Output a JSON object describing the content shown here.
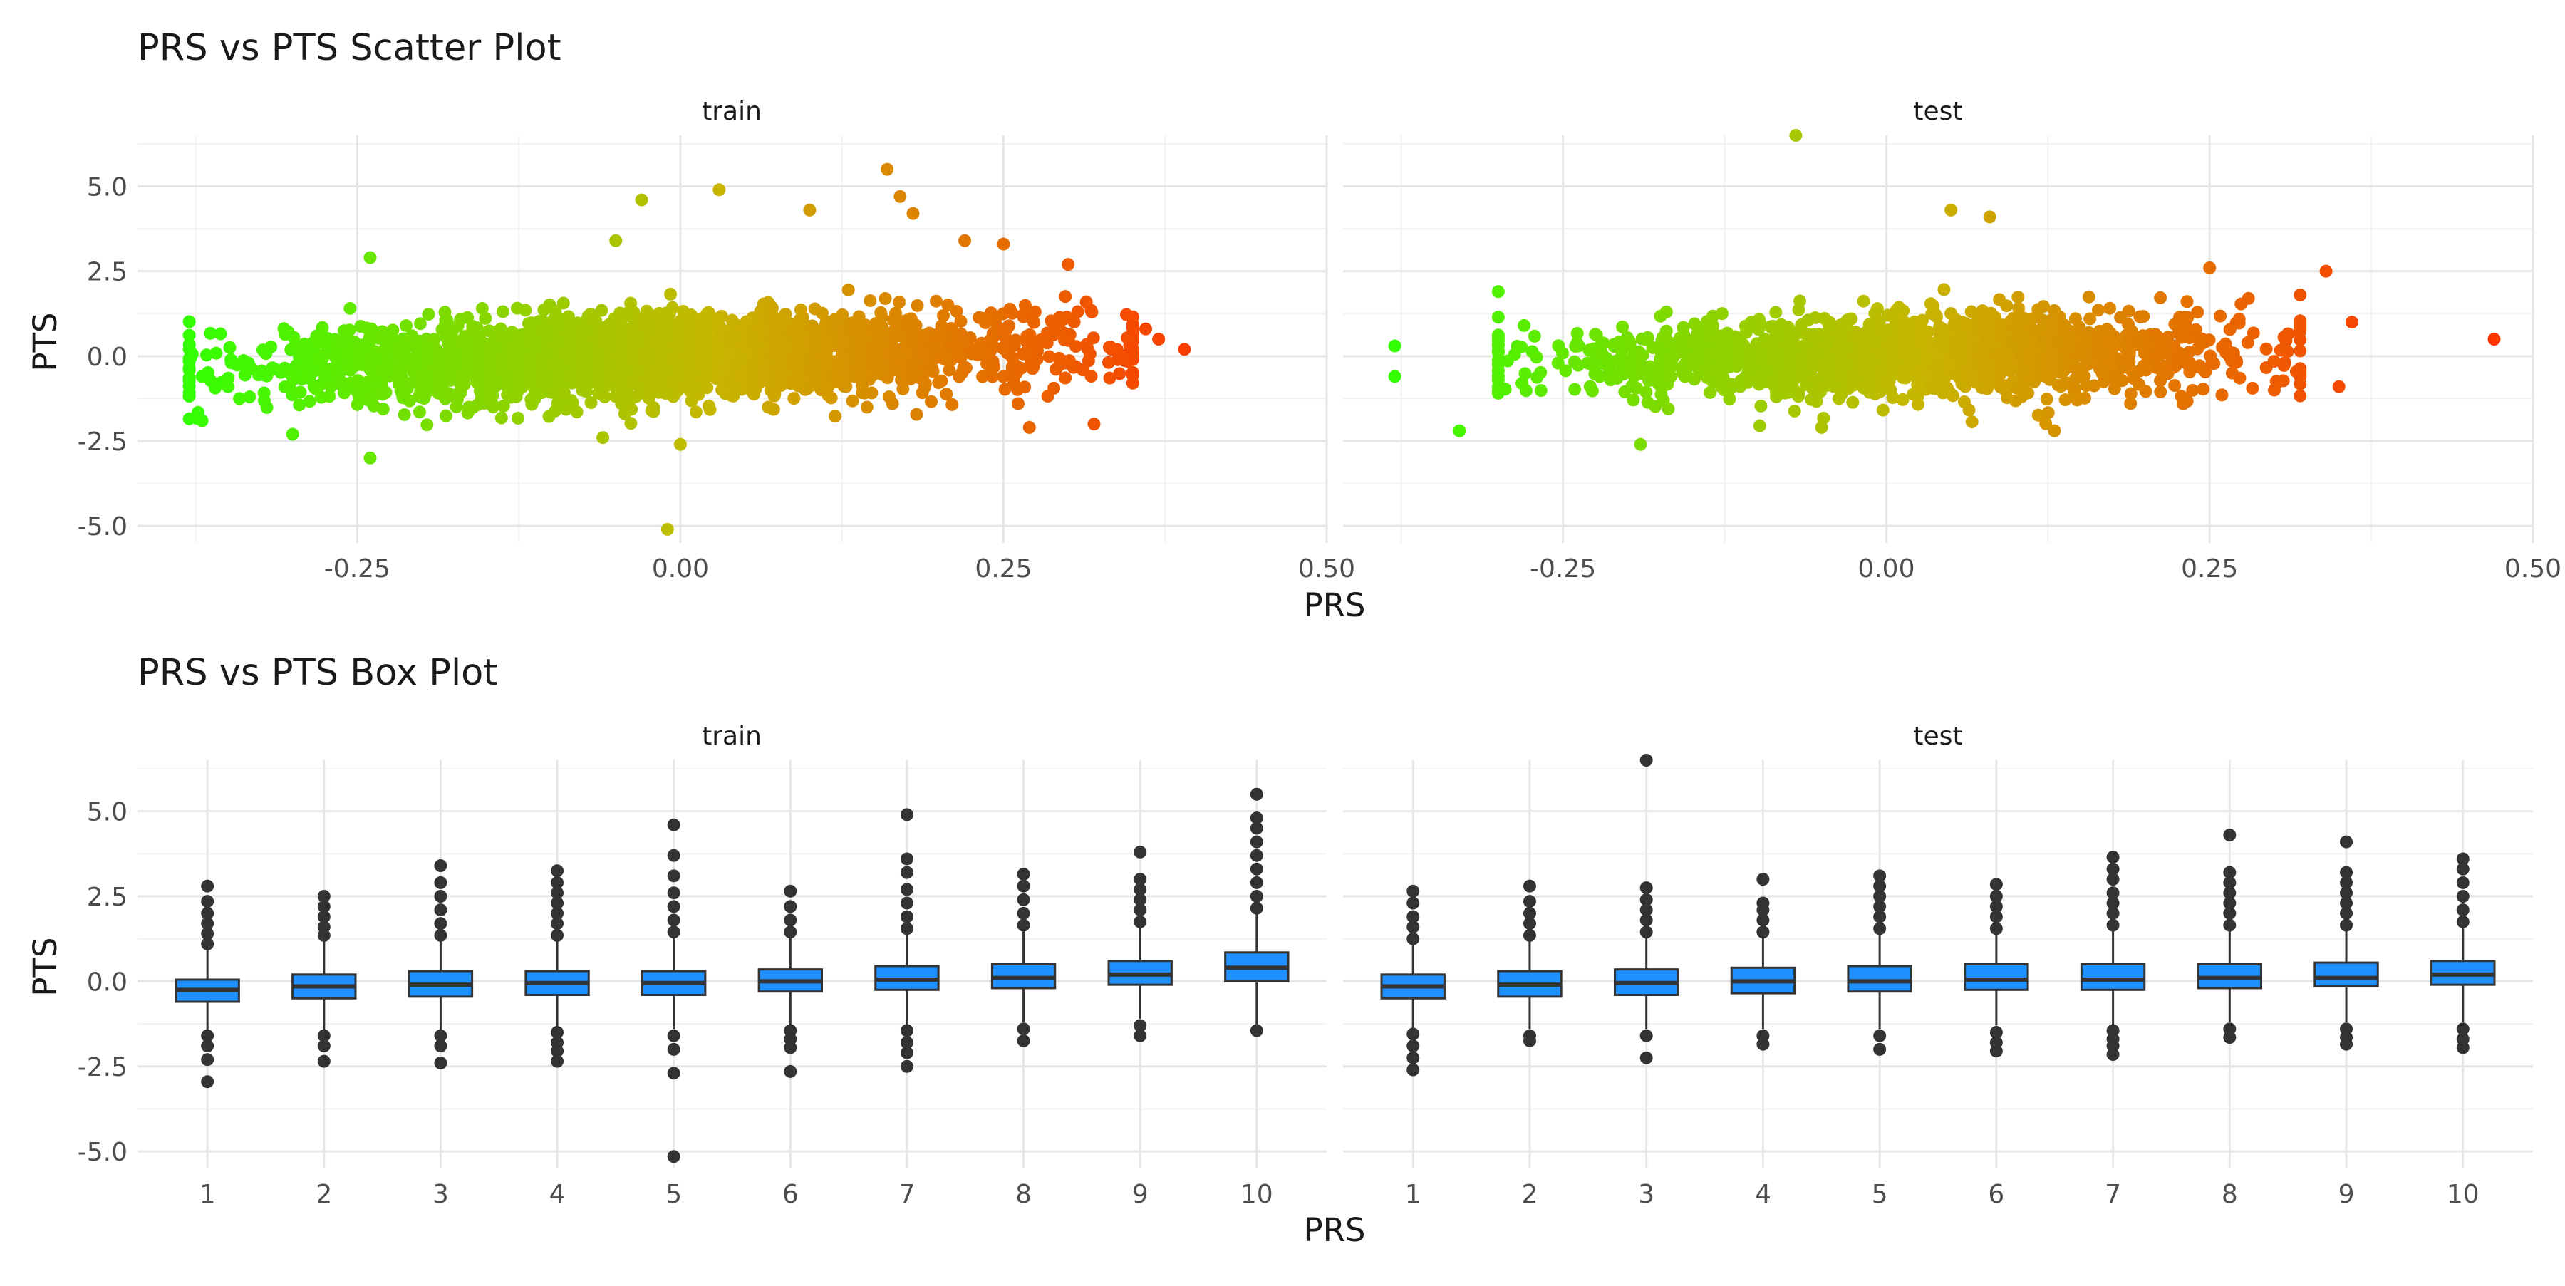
{
  "chart_data": [
    {
      "type": "scatter",
      "title": "PRS vs PTS Scatter Plot",
      "xlabel": "PRS",
      "ylabel": "PTS",
      "facets": [
        "train",
        "test"
      ],
      "xlim": [
        -0.42,
        0.5
      ],
      "ylim": [
        -5.5,
        6.5
      ],
      "x_ticks": [
        "-0.25",
        "0.00",
        "0.25",
        "0.50"
      ],
      "y_ticks": [
        "-5.0",
        "-2.5",
        "0.0",
        "2.5",
        "5.0"
      ],
      "grid": true,
      "legend": "none",
      "color_scale": {
        "low": "#33ff00",
        "mid": "#c6b800",
        "high": "#ff3300"
      },
      "panels": [
        {
          "facet": "train",
          "cloud": {
            "x_range": [
              -0.38,
              0.35
            ],
            "y_sd": 0.6,
            "slope": 2.2,
            "n": 2600
          },
          "points": [
            [
              -0.37,
              -0.6
            ],
            [
              -0.37,
              -1.9
            ],
            [
              -0.35,
              -0.9
            ],
            [
              -0.3,
              -2.3
            ],
            [
              -0.24,
              -3.0
            ],
            [
              -0.24,
              2.9
            ],
            [
              -0.06,
              -2.4
            ],
            [
              -0.05,
              3.4
            ],
            [
              -0.03,
              4.6
            ],
            [
              -0.01,
              -5.1
            ],
            [
              0.0,
              -2.6
            ],
            [
              0.03,
              4.9
            ],
            [
              0.1,
              4.3
            ],
            [
              0.16,
              5.5
            ],
            [
              0.17,
              4.7
            ],
            [
              0.18,
              4.2
            ],
            [
              0.22,
              3.4
            ],
            [
              0.25,
              3.3
            ],
            [
              0.27,
              -2.1
            ],
            [
              0.3,
              2.7
            ],
            [
              0.32,
              -2.0
            ],
            [
              0.36,
              0.8
            ],
            [
              0.37,
              0.5
            ],
            [
              0.39,
              0.2
            ]
          ]
        },
        {
          "facet": "test",
          "cloud": {
            "x_range": [
              -0.3,
              0.32
            ],
            "y_sd": 0.6,
            "slope": 1.6,
            "n": 1600
          },
          "points": [
            [
              -0.38,
              0.3
            ],
            [
              -0.38,
              -0.6
            ],
            [
              -0.33,
              -2.2
            ],
            [
              -0.3,
              1.9
            ],
            [
              -0.28,
              0.9
            ],
            [
              -0.19,
              -2.6
            ],
            [
              -0.17,
              1.3
            ],
            [
              -0.07,
              6.5
            ],
            [
              -0.05,
              -2.1
            ],
            [
              0.05,
              4.3
            ],
            [
              0.08,
              4.1
            ],
            [
              0.13,
              -2.2
            ],
            [
              0.25,
              2.6
            ],
            [
              0.28,
              1.7
            ],
            [
              0.3,
              -1.0
            ],
            [
              0.32,
              1.8
            ],
            [
              0.34,
              2.5
            ],
            [
              0.35,
              -0.9
            ],
            [
              0.36,
              1.0
            ],
            [
              0.47,
              0.5
            ]
          ]
        }
      ]
    },
    {
      "type": "box",
      "title": "PRS vs PTS Box Plot",
      "xlabel": "PRS",
      "ylabel": "PTS",
      "facets": [
        "train",
        "test"
      ],
      "categories": [
        "1",
        "2",
        "3",
        "4",
        "5",
        "6",
        "7",
        "8",
        "9",
        "10"
      ],
      "ylim": [
        -5.5,
        6.5
      ],
      "y_ticks": [
        "-5.0",
        "-2.5",
        "0.0",
        "2.5",
        "5.0"
      ],
      "fill": "#1e90ff",
      "grid": true,
      "legend": "none",
      "panels": [
        {
          "facet": "train",
          "boxes": [
            {
              "q1": -0.6,
              "median": -0.25,
              "q3": 0.05,
              "whisker_low": -1.5,
              "whisker_high": 1.0,
              "outliers_low": [
                -1.6,
                -1.9,
                -2.3,
                -2.95
              ],
              "outliers_high": [
                1.1,
                1.4,
                1.7,
                2.0,
                2.35,
                2.8
              ]
            },
            {
              "q1": -0.5,
              "median": -0.15,
              "q3": 0.2,
              "whisker_low": -1.5,
              "whisker_high": 1.2,
              "outliers_low": [
                -1.6,
                -1.9,
                -2.35
              ],
              "outliers_high": [
                1.35,
                1.6,
                1.9,
                2.2,
                2.5
              ]
            },
            {
              "q1": -0.45,
              "median": -0.1,
              "q3": 0.3,
              "whisker_low": -1.5,
              "whisker_high": 1.2,
              "outliers_low": [
                -1.6,
                -1.9,
                -2.4
              ],
              "outliers_high": [
                1.35,
                1.7,
                2.1,
                2.5,
                2.9,
                3.4
              ]
            },
            {
              "q1": -0.4,
              "median": -0.05,
              "q3": 0.3,
              "whisker_low": -1.4,
              "whisker_high": 1.2,
              "outliers_low": [
                -1.5,
                -1.8,
                -2.05,
                -2.35
              ],
              "outliers_high": [
                1.35,
                1.7,
                2.0,
                2.3,
                2.6,
                2.9,
                3.25
              ]
            },
            {
              "q1": -0.4,
              "median": -0.05,
              "q3": 0.3,
              "whisker_low": -1.4,
              "whisker_high": 1.3,
              "outliers_low": [
                -1.6,
                -2.0,
                -2.7,
                -5.15
              ],
              "outliers_high": [
                1.45,
                1.8,
                2.2,
                2.6,
                3.1,
                3.7,
                4.6
              ]
            },
            {
              "q1": -0.3,
              "median": 0.0,
              "q3": 0.35,
              "whisker_low": -1.3,
              "whisker_high": 1.3,
              "outliers_low": [
                -1.45,
                -1.7,
                -1.95,
                -2.65
              ],
              "outliers_high": [
                1.45,
                1.8,
                2.2,
                2.65
              ]
            },
            {
              "q1": -0.25,
              "median": 0.05,
              "q3": 0.45,
              "whisker_low": -1.3,
              "whisker_high": 1.4,
              "outliers_low": [
                -1.45,
                -1.8,
                -2.1,
                -2.5
              ],
              "outliers_high": [
                1.55,
                1.9,
                2.3,
                2.7,
                3.2,
                3.6,
                4.9
              ]
            },
            {
              "q1": -0.2,
              "median": 0.1,
              "q3": 0.5,
              "whisker_low": -1.2,
              "whisker_high": 1.5,
              "outliers_low": [
                -1.4,
                -1.75
              ],
              "outliers_high": [
                1.65,
                2.0,
                2.4,
                2.8,
                3.15
              ]
            },
            {
              "q1": -0.1,
              "median": 0.2,
              "q3": 0.6,
              "whisker_low": -1.1,
              "whisker_high": 1.6,
              "outliers_low": [
                -1.3,
                -1.6
              ],
              "outliers_high": [
                1.75,
                2.1,
                2.4,
                2.7,
                3.0,
                3.8
              ]
            },
            {
              "q1": 0.0,
              "median": 0.4,
              "q3": 0.85,
              "whisker_low": -1.3,
              "whisker_high": 2.0,
              "outliers_low": [
                -1.45
              ],
              "outliers_high": [
                2.15,
                2.5,
                2.9,
                3.3,
                3.7,
                4.1,
                4.5,
                4.8,
                5.5
              ]
            }
          ]
        },
        {
          "facet": "test",
          "boxes": [
            {
              "q1": -0.5,
              "median": -0.15,
              "q3": 0.2,
              "whisker_low": -1.4,
              "whisker_high": 1.1,
              "outliers_low": [
                -1.55,
                -1.9,
                -2.25,
                -2.6
              ],
              "outliers_high": [
                1.25,
                1.6,
                1.9,
                2.3,
                2.65
              ]
            },
            {
              "q1": -0.45,
              "median": -0.1,
              "q3": 0.3,
              "whisker_low": -1.4,
              "whisker_high": 1.2,
              "outliers_low": [
                -1.6,
                -1.75
              ],
              "outliers_high": [
                1.35,
                1.7,
                2.0,
                2.35,
                2.8
              ]
            },
            {
              "q1": -0.4,
              "median": -0.05,
              "q3": 0.35,
              "whisker_low": -1.4,
              "whisker_high": 1.3,
              "outliers_low": [
                -1.6,
                -2.25
              ],
              "outliers_high": [
                1.45,
                1.8,
                2.1,
                2.4,
                2.75,
                6.5
              ]
            },
            {
              "q1": -0.35,
              "median": 0.0,
              "q3": 0.4,
              "whisker_low": -1.4,
              "whisker_high": 1.3,
              "outliers_low": [
                -1.6,
                -1.85
              ],
              "outliers_high": [
                1.45,
                1.8,
                2.1,
                2.3,
                3.0
              ]
            },
            {
              "q1": -0.3,
              "median": 0.0,
              "q3": 0.45,
              "whisker_low": -1.4,
              "whisker_high": 1.4,
              "outliers_low": [
                -1.6,
                -2.0
              ],
              "outliers_high": [
                1.55,
                1.9,
                2.2,
                2.5,
                2.8,
                3.1
              ]
            },
            {
              "q1": -0.25,
              "median": 0.05,
              "q3": 0.5,
              "whisker_low": -1.3,
              "whisker_high": 1.4,
              "outliers_low": [
                -1.5,
                -1.8,
                -2.05
              ],
              "outliers_high": [
                1.55,
                1.9,
                2.2,
                2.5,
                2.85
              ]
            },
            {
              "q1": -0.25,
              "median": 0.05,
              "q3": 0.5,
              "whisker_low": -1.3,
              "whisker_high": 1.5,
              "outliers_low": [
                -1.45,
                -1.7,
                -1.9,
                -2.15
              ],
              "outliers_high": [
                1.65,
                2.0,
                2.3,
                2.6,
                3.0,
                3.3,
                3.65
              ]
            },
            {
              "q1": -0.2,
              "median": 0.1,
              "q3": 0.5,
              "whisker_low": -1.2,
              "whisker_high": 1.5,
              "outliers_low": [
                -1.4,
                -1.65
              ],
              "outliers_high": [
                1.65,
                2.0,
                2.3,
                2.6,
                2.9,
                3.2,
                4.3
              ]
            },
            {
              "q1": -0.15,
              "median": 0.1,
              "q3": 0.55,
              "whisker_low": -1.2,
              "whisker_high": 1.5,
              "outliers_low": [
                -1.4,
                -1.65,
                -1.85
              ],
              "outliers_high": [
                1.65,
                2.0,
                2.3,
                2.6,
                2.9,
                3.2,
                4.1
              ]
            },
            {
              "q1": -0.1,
              "median": 0.2,
              "q3": 0.6,
              "whisker_low": -1.2,
              "whisker_high": 1.6,
              "outliers_low": [
                -1.4,
                -1.7,
                -1.95
              ],
              "outliers_high": [
                1.75,
                2.1,
                2.5,
                2.9,
                3.3,
                3.6
              ]
            }
          ]
        }
      ]
    }
  ]
}
